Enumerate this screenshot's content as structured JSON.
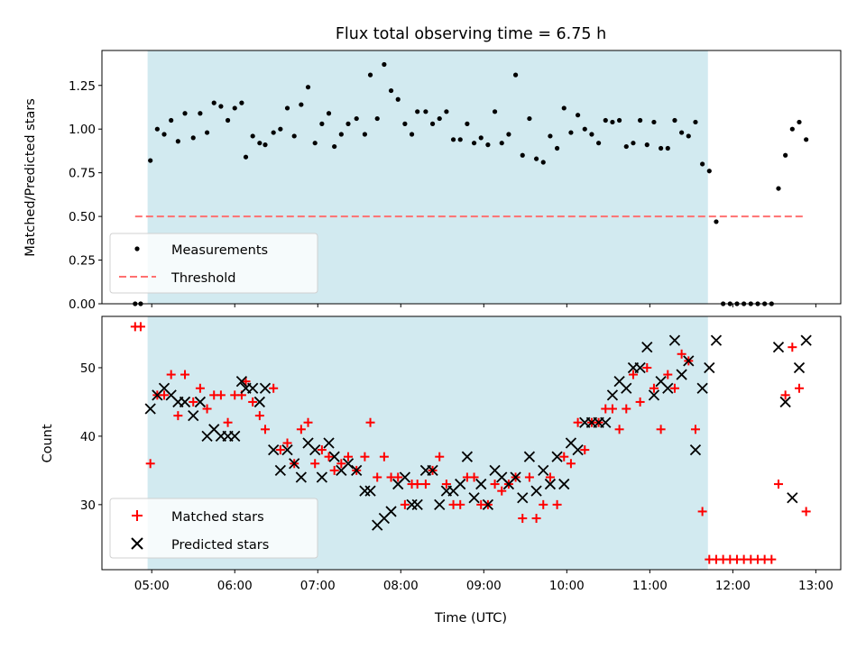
{
  "chart_data": {
    "type": "scatter",
    "title": "Flux total observing time = 6.75 h",
    "xlabel": "Time (UTC)",
    "x_ticks": [
      "05:00",
      "06:00",
      "07:00",
      "08:00",
      "09:00",
      "10:00",
      "11:00",
      "12:00",
      "13:00"
    ],
    "x_range": [
      "04:24",
      "13:18"
    ],
    "observing_window": [
      "04:57",
      "11:42"
    ],
    "highlight_color": "#d2eaf0",
    "panels": [
      {
        "ylabel": "Matched/Predicted stars",
        "ylim": [
          0,
          1.45
        ],
        "y_ticks": [
          "0.00",
          "0.25",
          "0.50",
          "0.75",
          "1.00",
          "1.25"
        ],
        "threshold": {
          "name": "Threshold",
          "value": 0.5,
          "x_start": "04:48",
          "x_end": "12:52",
          "color": "#ff7070"
        },
        "legend": {
          "placement": "lower-left",
          "entries": [
            "Measurements",
            "Threshold"
          ]
        },
        "series": [
          {
            "name": "Measurements",
            "marker": "dot",
            "color": "#000000",
            "x": [
              "04:48",
              "04:52",
              "04:59",
              "05:04",
              "05:09",
              "05:14",
              "05:19",
              "05:24",
              "05:30",
              "05:35",
              "05:40",
              "05:45",
              "05:50",
              "05:55",
              "06:00",
              "06:05",
              "06:08",
              "06:13",
              "06:18",
              "06:22",
              "06:28",
              "06:33",
              "06:38",
              "06:43",
              "06:48",
              "06:53",
              "06:58",
              "07:03",
              "07:08",
              "07:12",
              "07:17",
              "07:22",
              "07:28",
              "07:34",
              "07:38",
              "07:43",
              "07:48",
              "07:53",
              "07:58",
              "08:03",
              "08:08",
              "08:12",
              "08:18",
              "08:23",
              "08:28",
              "08:33",
              "08:38",
              "08:43",
              "08:48",
              "08:53",
              "08:58",
              "09:03",
              "09:08",
              "09:13",
              "09:18",
              "09:23",
              "09:28",
              "09:33",
              "09:38",
              "09:43",
              "09:48",
              "09:53",
              "09:58",
              "10:03",
              "10:08",
              "10:13",
              "10:18",
              "10:23",
              "10:28",
              "10:33",
              "10:38",
              "10:43",
              "10:48",
              "10:53",
              "10:58",
              "11:03",
              "11:08",
              "11:13",
              "11:18",
              "11:23",
              "11:28",
              "11:33",
              "11:38",
              "11:43",
              "11:48",
              "11:53",
              "11:58",
              "12:03",
              "12:08",
              "12:13",
              "12:18",
              "12:23",
              "12:28",
              "12:33",
              "12:38",
              "12:43",
              "12:48",
              "12:53"
            ],
            "y": [
              0.0,
              0.0,
              0.82,
              1.0,
              0.97,
              1.05,
              0.93,
              1.09,
              0.95,
              1.09,
              0.98,
              1.15,
              1.13,
              1.05,
              1.12,
              1.15,
              0.84,
              0.96,
              0.92,
              0.91,
              0.98,
              1.0,
              1.12,
              0.96,
              1.14,
              1.24,
              0.92,
              1.03,
              1.09,
              0.9,
              0.97,
              1.03,
              1.06,
              0.97,
              1.31,
              1.06,
              1.37,
              1.22,
              1.17,
              1.03,
              0.97,
              1.1,
              1.1,
              1.03,
              1.06,
              1.1,
              0.94,
              0.94,
              1.03,
              0.92,
              0.95,
              0.91,
              1.1,
              0.92,
              0.97,
              1.31,
              0.85,
              1.06,
              0.83,
              0.81,
              0.96,
              0.89,
              1.12,
              0.98,
              1.08,
              1.0,
              0.97,
              0.92,
              1.05,
              1.04,
              1.05,
              0.9,
              0.92,
              1.05,
              0.91,
              1.04,
              0.89,
              0.89,
              1.05,
              0.98,
              0.96,
              1.04,
              0.8,
              0.76,
              0.47,
              0.0,
              0.0,
              0.0,
              0.0,
              0.0,
              0.0,
              0.0,
              0.0,
              0.66,
              0.85,
              1.0,
              1.04,
              0.94
            ]
          }
        ]
      },
      {
        "ylabel": "Count",
        "ylim": [
          20.5,
          57.5
        ],
        "y_ticks": [
          "30",
          "40",
          "50"
        ],
        "legend": {
          "placement": "lower-left",
          "entries": [
            "Matched stars",
            "Predicted stars"
          ]
        },
        "series": [
          {
            "name": "Matched stars",
            "marker": "plus",
            "color": "#ff0000",
            "x": [
              "04:48",
              "04:52",
              "04:59",
              "05:04",
              "05:09",
              "05:14",
              "05:19",
              "05:24",
              "05:30",
              "05:35",
              "05:40",
              "05:45",
              "05:50",
              "05:55",
              "06:00",
              "06:05",
              "06:08",
              "06:13",
              "06:18",
              "06:22",
              "06:28",
              "06:33",
              "06:38",
              "06:43",
              "06:48",
              "06:53",
              "06:58",
              "07:03",
              "07:08",
              "07:12",
              "07:17",
              "07:22",
              "07:28",
              "07:34",
              "07:38",
              "07:43",
              "07:48",
              "07:53",
              "07:58",
              "08:03",
              "08:08",
              "08:12",
              "08:18",
              "08:23",
              "08:28",
              "08:33",
              "08:38",
              "08:43",
              "08:48",
              "08:53",
              "08:58",
              "09:03",
              "09:08",
              "09:13",
              "09:18",
              "09:23",
              "09:28",
              "09:33",
              "09:38",
              "09:43",
              "09:48",
              "09:53",
              "09:58",
              "10:03",
              "10:08",
              "10:13",
              "10:18",
              "10:23",
              "10:28",
              "10:33",
              "10:38",
              "10:43",
              "10:48",
              "10:53",
              "10:58",
              "11:03",
              "11:08",
              "11:13",
              "11:18",
              "11:23",
              "11:28",
              "11:33",
              "11:38",
              "11:43",
              "11:48",
              "11:53",
              "11:58",
              "12:03",
              "12:08",
              "12:13",
              "12:18",
              "12:23",
              "12:28",
              "12:33",
              "12:38",
              "12:43",
              "12:48",
              "12:53"
            ],
            "y": [
              56,
              56,
              36,
              46,
              46,
              49,
              43,
              49,
              45,
              47,
              44,
              46,
              46,
              42,
              46,
              46,
              48,
              45,
              43,
              41,
              47,
              38,
              39,
              36,
              41,
              42,
              36,
              38,
              37,
              35,
              36,
              37,
              35,
              37,
              42,
              34,
              37,
              34,
              34,
              30,
              33,
              33,
              33,
              35,
              37,
              33,
              30,
              30,
              34,
              34,
              30,
              30,
              33,
              32,
              33,
              34,
              28,
              34,
              28,
              30,
              34,
              30,
              37,
              36,
              42,
              38,
              42,
              42,
              44,
              44,
              41,
              44,
              49,
              45,
              50,
              47,
              41,
              49,
              47,
              52,
              51,
              41,
              29,
              22,
              22,
              22,
              22,
              22,
              22,
              22,
              22,
              22,
              22,
              33,
              46,
              53,
              47,
              29
            ]
          },
          {
            "name": "Predicted stars",
            "marker": "x",
            "color": "#000000",
            "x": [
              "04:59",
              "05:04",
              "05:09",
              "05:14",
              "05:19",
              "05:24",
              "05:30",
              "05:35",
              "05:40",
              "05:45",
              "05:50",
              "05:55",
              "06:00",
              "06:05",
              "06:08",
              "06:13",
              "06:18",
              "06:22",
              "06:28",
              "06:33",
              "06:38",
              "06:43",
              "06:48",
              "06:53",
              "06:58",
              "07:03",
              "07:08",
              "07:12",
              "07:17",
              "07:22",
              "07:28",
              "07:34",
              "07:38",
              "07:43",
              "07:48",
              "07:53",
              "07:58",
              "08:03",
              "08:08",
              "08:12",
              "08:18",
              "08:23",
              "08:28",
              "08:33",
              "08:38",
              "08:43",
              "08:48",
              "08:53",
              "08:58",
              "09:03",
              "09:08",
              "09:13",
              "09:18",
              "09:23",
              "09:28",
              "09:33",
              "09:38",
              "09:43",
              "09:48",
              "09:53",
              "09:58",
              "10:03",
              "10:08",
              "10:13",
              "10:18",
              "10:23",
              "10:28",
              "10:33",
              "10:38",
              "10:43",
              "10:48",
              "10:53",
              "10:58",
              "11:03",
              "11:08",
              "11:13",
              "11:18",
              "11:23",
              "11:28",
              "11:33",
              "11:38",
              "11:43",
              "11:48",
              "12:33",
              "12:38",
              "12:43",
              "12:48",
              "12:53"
            ],
            "y": [
              44,
              46,
              47,
              46,
              45,
              45,
              43,
              45,
              40,
              41,
              40,
              40,
              40,
              48,
              47,
              47,
              45,
              47,
              38,
              35,
              38,
              36,
              34,
              39,
              38,
              34,
              39,
              37,
              35,
              36,
              35,
              32,
              32,
              27,
              28,
              29,
              33,
              34,
              30,
              30,
              35,
              35,
              30,
              32,
              32,
              33,
              37,
              31,
              33,
              30,
              35,
              34,
              33,
              34,
              31,
              37,
              32,
              35,
              33,
              37,
              33,
              39,
              38,
              42,
              42,
              42,
              42,
              46,
              48,
              47,
              50,
              50,
              53,
              46,
              48,
              47,
              54,
              49,
              51,
              38,
              47,
              50,
              54,
              53,
              45,
              31,
              50,
              54
            ]
          }
        ]
      }
    ]
  }
}
